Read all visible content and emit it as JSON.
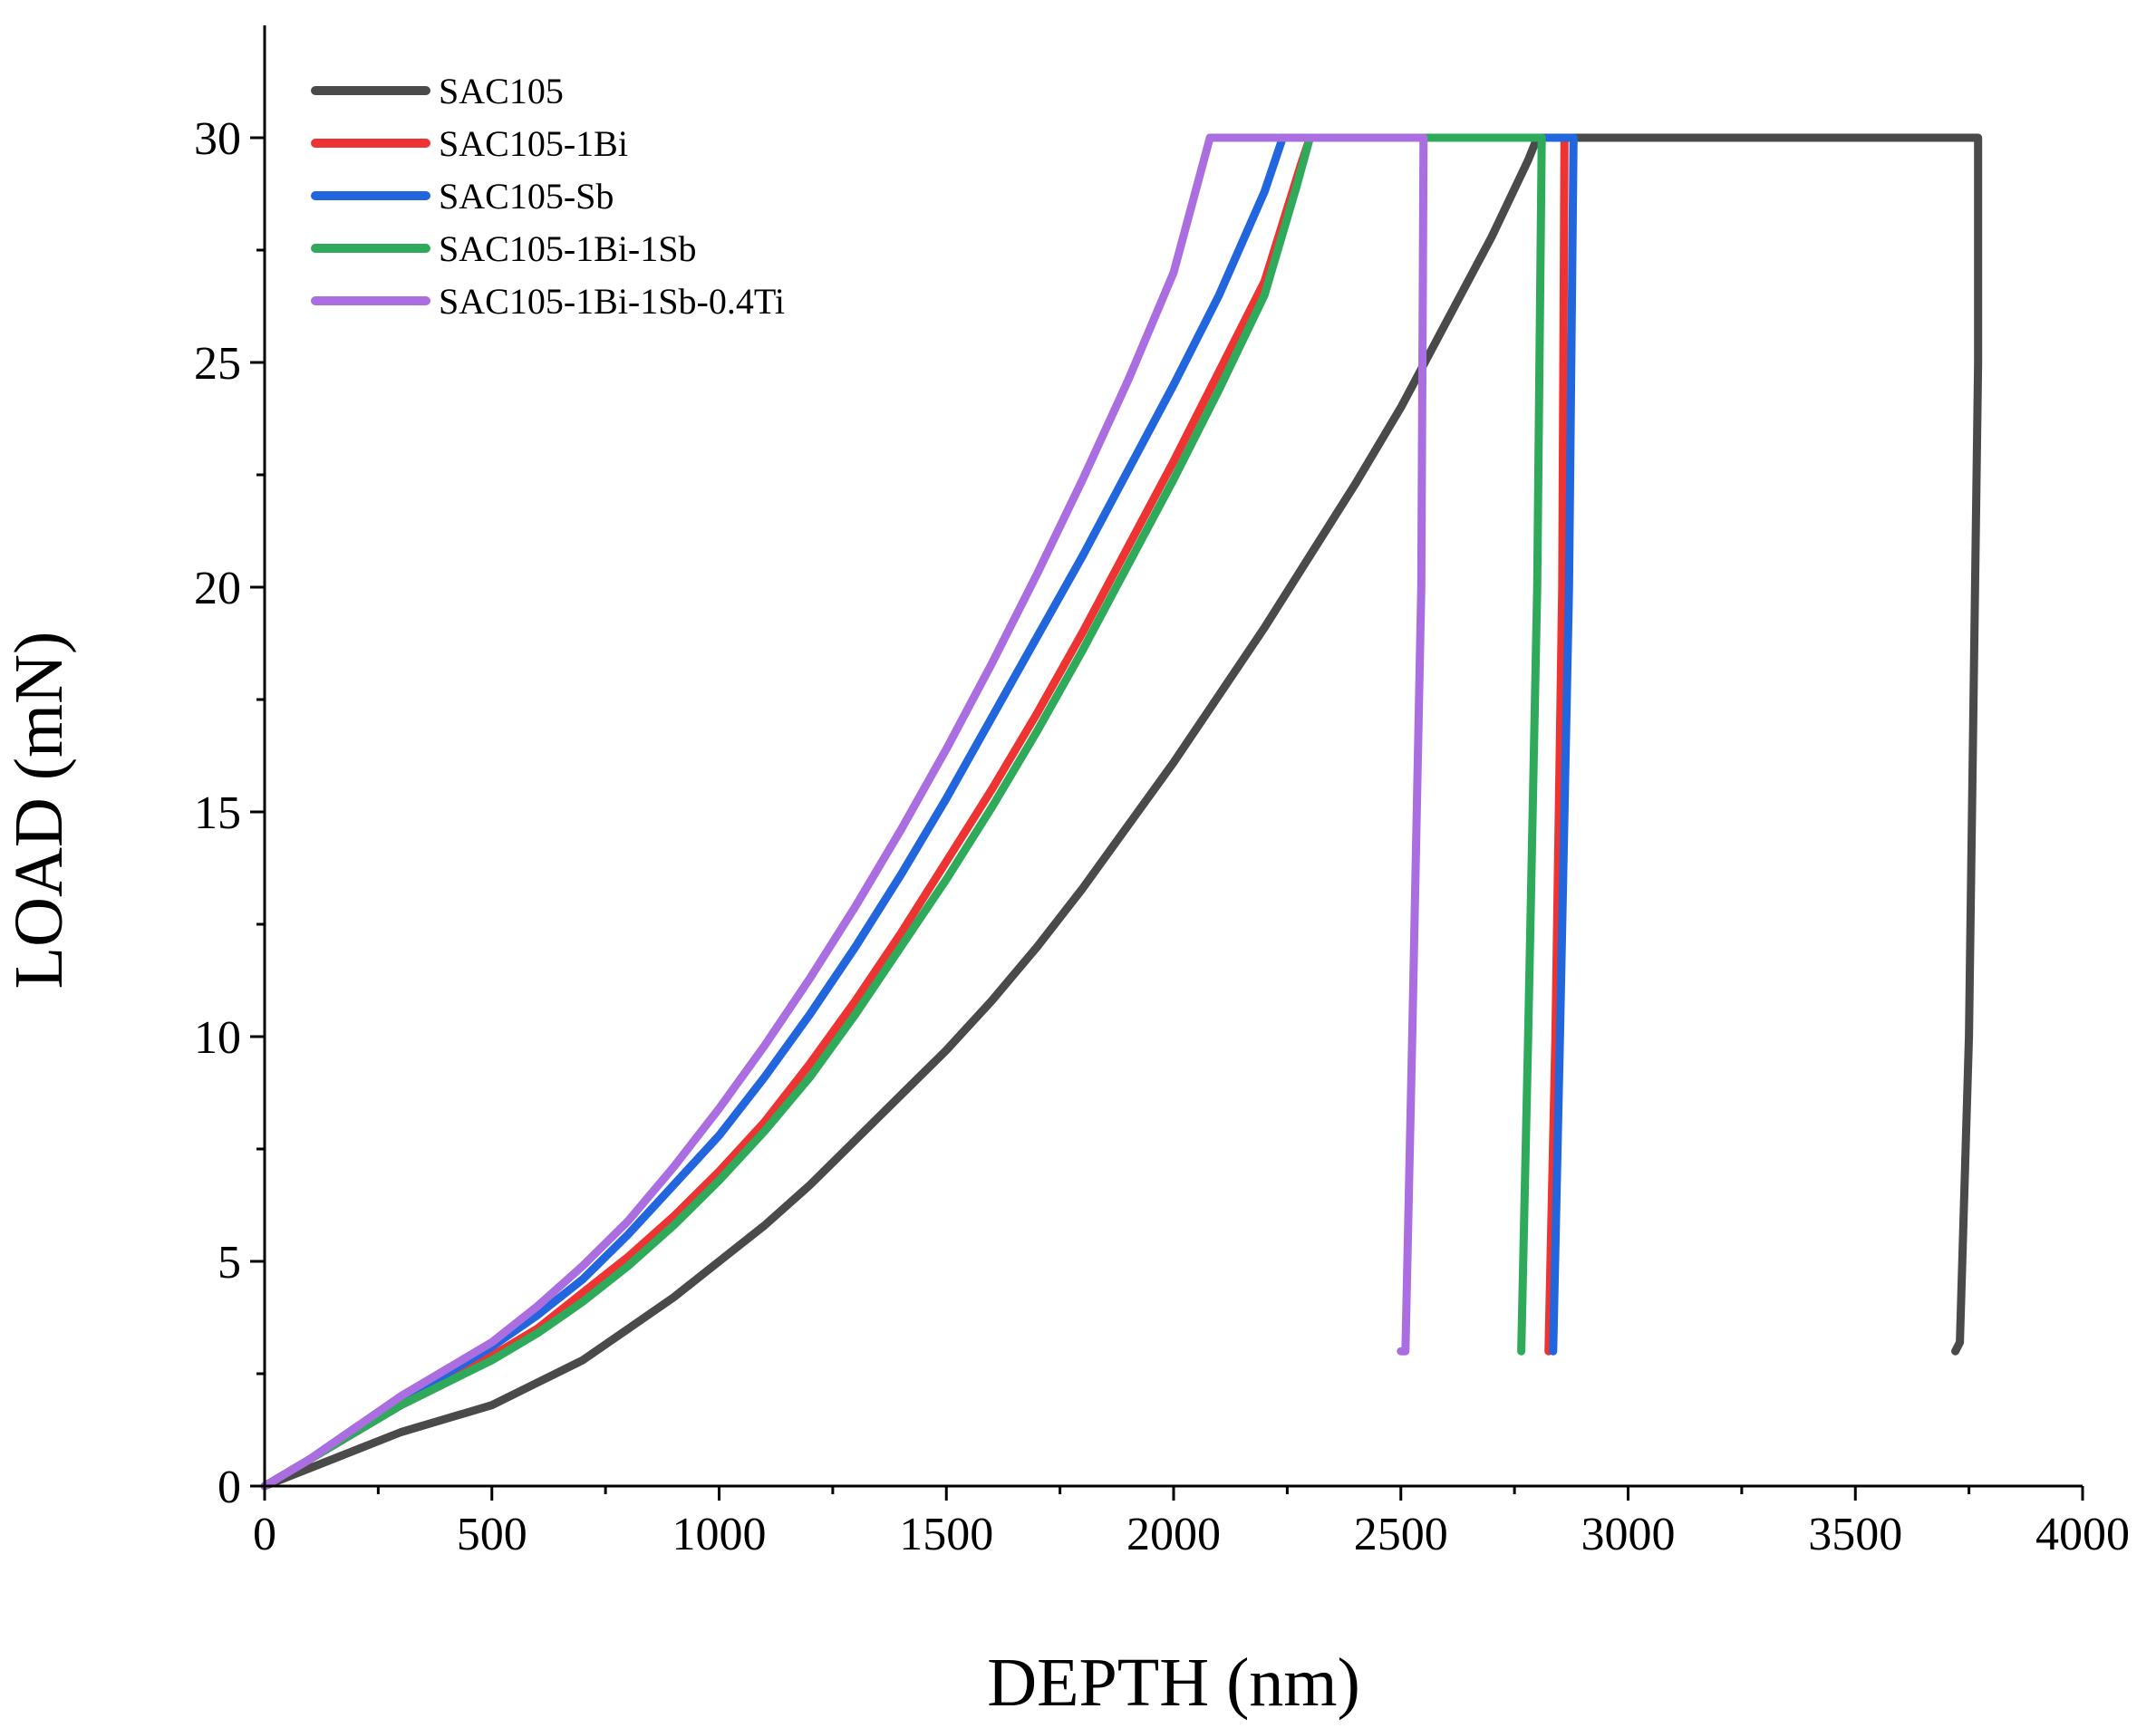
{
  "chart_data": {
    "type": "line",
    "title": "",
    "xlabel": "DEPTH (nm)",
    "ylabel": "LOAD (mN)",
    "xlim": [
      0,
      4000
    ],
    "ylim": [
      0,
      32.5
    ],
    "xticks": [
      0,
      500,
      1000,
      1500,
      2000,
      2500,
      3000,
      3500,
      4000
    ],
    "yticks": [
      0,
      5,
      10,
      15,
      20,
      25,
      30
    ],
    "grid": false,
    "legend_position": "top-left",
    "series": [
      {
        "name": "SAC105",
        "color": "#4a4a4a",
        "points": [
          [
            0,
            0
          ],
          [
            100,
            0.4
          ],
          [
            200,
            0.8
          ],
          [
            300,
            1.2
          ],
          [
            400,
            1.5
          ],
          [
            500,
            1.8
          ],
          [
            600,
            2.3
          ],
          [
            700,
            2.8
          ],
          [
            800,
            3.5
          ],
          [
            900,
            4.2
          ],
          [
            1000,
            5.0
          ],
          [
            1100,
            5.8
          ],
          [
            1200,
            6.7
          ],
          [
            1300,
            7.7
          ],
          [
            1400,
            8.7
          ],
          [
            1500,
            9.7
          ],
          [
            1600,
            10.8
          ],
          [
            1700,
            12.0
          ],
          [
            1800,
            13.3
          ],
          [
            1900,
            14.7
          ],
          [
            2000,
            16.1
          ],
          [
            2100,
            17.6
          ],
          [
            2200,
            19.1
          ],
          [
            2300,
            20.7
          ],
          [
            2400,
            22.3
          ],
          [
            2500,
            24.0
          ],
          [
            2600,
            25.9
          ],
          [
            2700,
            27.8
          ],
          [
            2780,
            29.5
          ],
          [
            2800,
            30
          ],
          [
            3770,
            30
          ],
          [
            3770,
            25
          ],
          [
            3750,
            10
          ],
          [
            3730,
            3.2
          ],
          [
            3720,
            3.0
          ]
        ]
      },
      {
        "name": "SAC105-1Bi",
        "color": "#ee3333",
        "points": [
          [
            0,
            0
          ],
          [
            100,
            0.6
          ],
          [
            200,
            1.2
          ],
          [
            300,
            1.8
          ],
          [
            400,
            2.3
          ],
          [
            500,
            2.9
          ],
          [
            600,
            3.5
          ],
          [
            700,
            4.3
          ],
          [
            800,
            5.1
          ],
          [
            900,
            6.0
          ],
          [
            1000,
            7.0
          ],
          [
            1100,
            8.1
          ],
          [
            1200,
            9.4
          ],
          [
            1300,
            10.8
          ],
          [
            1400,
            12.3
          ],
          [
            1500,
            13.9
          ],
          [
            1600,
            15.5
          ],
          [
            1700,
            17.2
          ],
          [
            1800,
            19.0
          ],
          [
            1900,
            20.9
          ],
          [
            2000,
            22.8
          ],
          [
            2100,
            24.8
          ],
          [
            2200,
            26.8
          ],
          [
            2280,
            29.4
          ],
          [
            2300,
            30
          ],
          [
            2860,
            30
          ],
          [
            2855,
            20
          ],
          [
            2840,
            10
          ],
          [
            2825,
            3.0
          ]
        ]
      },
      {
        "name": "SAC105-Sb",
        "color": "#2266dd",
        "points": [
          [
            0,
            0
          ],
          [
            100,
            0.6
          ],
          [
            200,
            1.3
          ],
          [
            300,
            1.9
          ],
          [
            400,
            2.5
          ],
          [
            500,
            3.1
          ],
          [
            600,
            3.8
          ],
          [
            700,
            4.6
          ],
          [
            800,
            5.6
          ],
          [
            900,
            6.7
          ],
          [
            1000,
            7.8
          ],
          [
            1100,
            9.1
          ],
          [
            1200,
            10.5
          ],
          [
            1300,
            12.0
          ],
          [
            1400,
            13.6
          ],
          [
            1500,
            15.3
          ],
          [
            1600,
            17.1
          ],
          [
            1700,
            18.9
          ],
          [
            1800,
            20.7
          ],
          [
            1900,
            22.6
          ],
          [
            2000,
            24.5
          ],
          [
            2100,
            26.5
          ],
          [
            2200,
            28.8
          ],
          [
            2240,
            30
          ],
          [
            2880,
            30
          ],
          [
            2870,
            20
          ],
          [
            2850,
            10
          ],
          [
            2835,
            3.0
          ]
        ]
      },
      {
        "name": "SAC105-1Bi-1Sb",
        "color": "#2eaa5a",
        "points": [
          [
            0,
            0
          ],
          [
            100,
            0.6
          ],
          [
            200,
            1.2
          ],
          [
            300,
            1.8
          ],
          [
            400,
            2.3
          ],
          [
            500,
            2.8
          ],
          [
            600,
            3.4
          ],
          [
            700,
            4.1
          ],
          [
            800,
            4.9
          ],
          [
            900,
            5.8
          ],
          [
            1000,
            6.8
          ],
          [
            1100,
            7.9
          ],
          [
            1200,
            9.1
          ],
          [
            1300,
            10.5
          ],
          [
            1400,
            12.0
          ],
          [
            1500,
            13.5
          ],
          [
            1600,
            15.1
          ],
          [
            1700,
            16.8
          ],
          [
            1800,
            18.6
          ],
          [
            1900,
            20.5
          ],
          [
            2000,
            22.4
          ],
          [
            2100,
            24.4
          ],
          [
            2200,
            26.5
          ],
          [
            2270,
            28.9
          ],
          [
            2300,
            30
          ],
          [
            2810,
            30
          ],
          [
            2800,
            20
          ],
          [
            2780,
            10
          ],
          [
            2765,
            3.0
          ]
        ]
      },
      {
        "name": "SAC105-1Bi-1Sb-0.4Ti",
        "color": "#aa6ee0",
        "points": [
          [
            0,
            0
          ],
          [
            100,
            0.6
          ],
          [
            200,
            1.3
          ],
          [
            300,
            2.0
          ],
          [
            400,
            2.6
          ],
          [
            500,
            3.2
          ],
          [
            600,
            4.0
          ],
          [
            700,
            4.9
          ],
          [
            800,
            5.9
          ],
          [
            900,
            7.1
          ],
          [
            1000,
            8.4
          ],
          [
            1100,
            9.8
          ],
          [
            1200,
            11.3
          ],
          [
            1300,
            12.9
          ],
          [
            1400,
            14.6
          ],
          [
            1500,
            16.4
          ],
          [
            1600,
            18.3
          ],
          [
            1700,
            20.3
          ],
          [
            1800,
            22.4
          ],
          [
            1900,
            24.6
          ],
          [
            2000,
            27.0
          ],
          [
            2080,
            30
          ],
          [
            2550,
            30
          ],
          [
            2545,
            20
          ],
          [
            2525,
            10
          ],
          [
            2510,
            3.0
          ],
          [
            2500,
            3.0
          ]
        ]
      }
    ]
  }
}
